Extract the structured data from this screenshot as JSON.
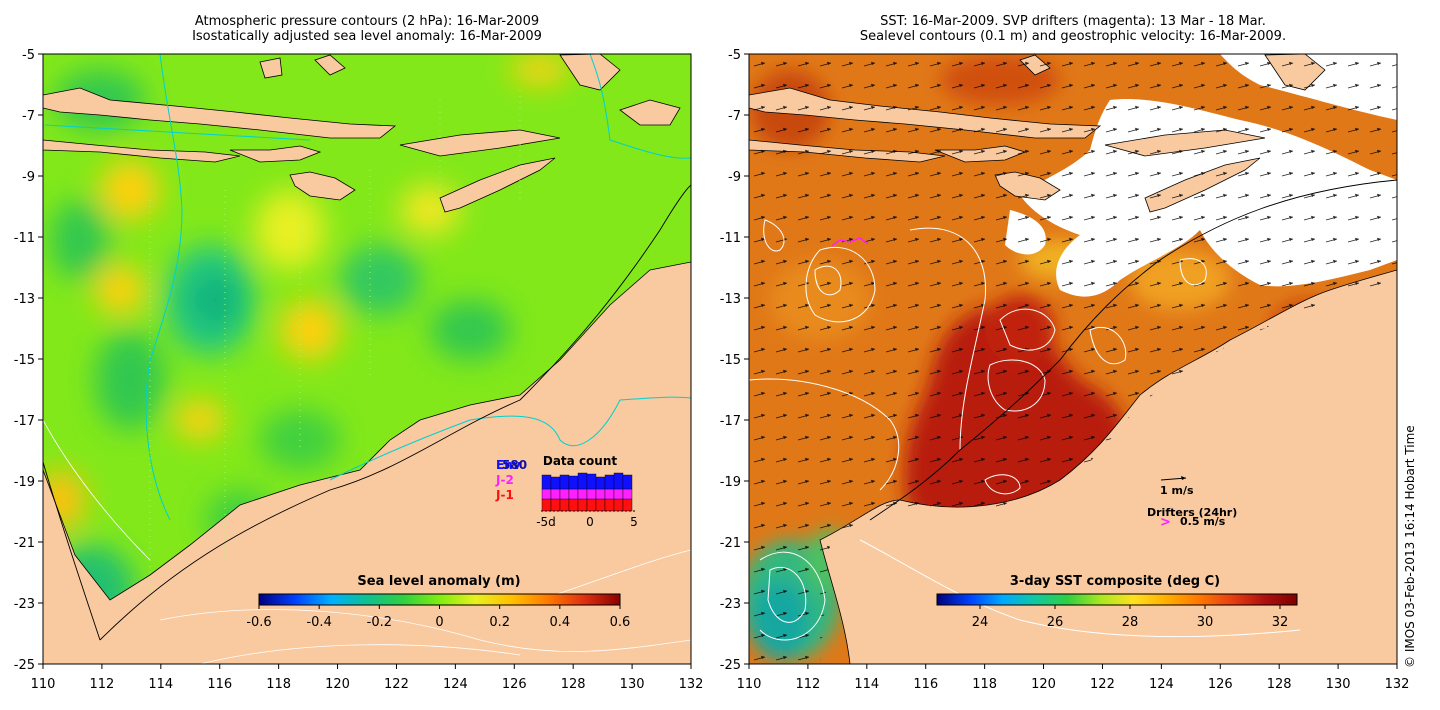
{
  "left_panel": {
    "title_line1": "Atmospheric pressure contours (2 hPa): 16-Mar-2009",
    "title_line2": "Isostatically adjusted sea level anomaly: 16-Mar-2009",
    "x_ticks": [
      "110",
      "112",
      "114",
      "116",
      "118",
      "120",
      "122",
      "124",
      "126",
      "128",
      "130",
      "132"
    ],
    "y_ticks": [
      "-5",
      "-7",
      "-9",
      "-11",
      "-13",
      "-15",
      "-17",
      "-19",
      "-21",
      "-23",
      "-25"
    ],
    "colorbar": {
      "label": "Sea level anomaly (m)",
      "ticks": [
        "-0.6",
        "-0.4",
        "-0.2",
        "0",
        "0.2",
        "0.4",
        "0.6"
      ]
    },
    "data_count": {
      "title": "Data count",
      "missions": [
        {
          "name": "Env",
          "color": "#1010ff"
        },
        {
          "name": "J-2",
          "color": "#ff20ff"
        },
        {
          "name": "J-1",
          "color": "#ff1010"
        }
      ],
      "overlap_label": "580",
      "axis_labels": [
        "-5d",
        "0",
        "5"
      ]
    }
  },
  "right_panel": {
    "title_line1": "SST: 16-Mar-2009. SVP drifters (magenta): 13 Mar - 18 Mar.",
    "title_line2": "Sealevel contours (0.1 m) and geostrophic velocity: 16-Mar-2009.",
    "x_ticks": [
      "110",
      "112",
      "114",
      "116",
      "118",
      "120",
      "122",
      "124",
      "126",
      "128",
      "130",
      "132"
    ],
    "y_ticks": [
      "-5",
      "-7",
      "-9",
      "-11",
      "-13",
      "-15",
      "-17",
      "-19",
      "-21",
      "-23",
      "-25"
    ],
    "colorbar": {
      "label": "3-day SST composite (deg C)",
      "ticks": [
        "24",
        "26",
        "28",
        "30",
        "32"
      ]
    },
    "velocity_key": "1 m/s",
    "drifters_label": "Drifters (24hr)",
    "drifter_key": "0.5 m/s",
    "drifter_symbol": ">"
  },
  "credit": "© IMOS 03-Feb-2013 16:14 Hobart Time",
  "colors": {
    "land": "#f9c9a0",
    "sst_hot": "#b01a10",
    "sst_warm": "#dd6a10",
    "sla_green": "#80ee10",
    "contour": "#ffffff",
    "shelf": "#000000",
    "pressure": "#00d0d0",
    "drifter": "#ff20ff"
  },
  "colorbar_scales": {
    "sla": [
      "#000080",
      "#0040ff",
      "#00b0ff",
      "#10c090",
      "#30d040",
      "#80ee10",
      "#e8f020",
      "#ffc000",
      "#ff7a00",
      "#e03010",
      "#8a0000"
    ],
    "sst": [
      "#00007a",
      "#0040ff",
      "#00a8ff",
      "#10c8a0",
      "#30d040",
      "#a8e820",
      "#ffe020",
      "#ffb000",
      "#ff7800",
      "#e84010",
      "#b01010",
      "#800000"
    ]
  }
}
